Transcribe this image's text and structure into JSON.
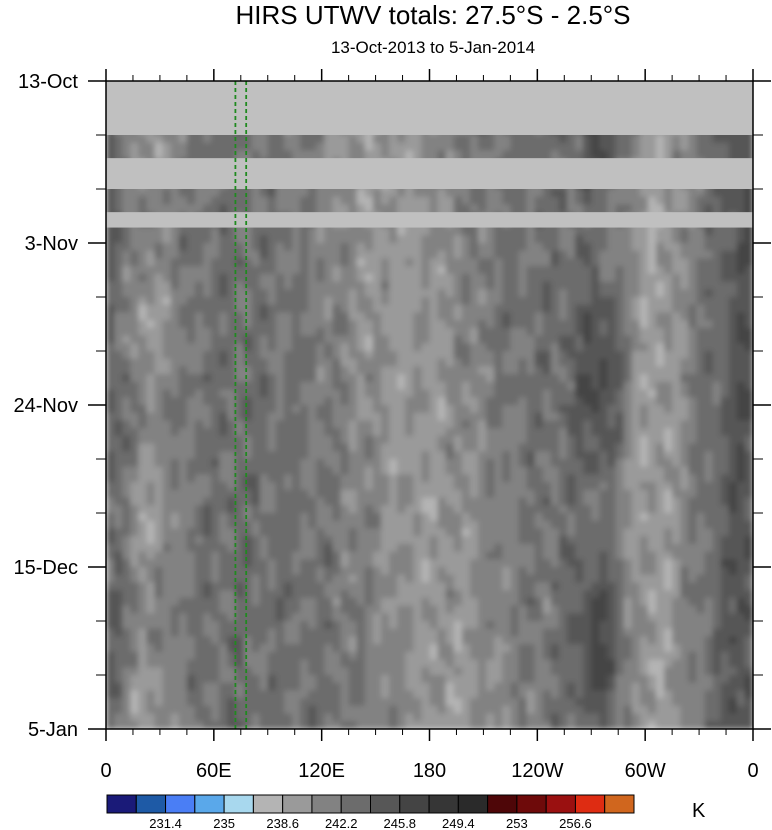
{
  "chart_data": {
    "type": "heatmap",
    "title": "HIRS UTWV totals: 27.5°S - 2.5°S",
    "subtitle": "13-Oct-2013 to 5-Jan-2014",
    "xlabel": "",
    "ylabel": "",
    "units": "K",
    "x_axis": {
      "range_deg_east": [
        0,
        360
      ],
      "tick_values_deg_east": [
        0,
        60,
        120,
        180,
        240,
        300,
        360
      ],
      "tick_labels": [
        "0",
        "60E",
        "120E",
        "180",
        "120W",
        "60W",
        "0"
      ]
    },
    "y_axis": {
      "range": [
        "2013-10-13",
        "2014-01-05"
      ],
      "direction": "time increases downward",
      "tick_dates": [
        "2013-10-13",
        "2013-11-03",
        "2013-11-24",
        "2013-12-15",
        "2014-01-05"
      ],
      "tick_labels": [
        "13-Oct",
        "3-Nov",
        "24-Nov",
        "15-Dec",
        "5-Jan"
      ]
    },
    "colorbar": {
      "levels": [
        231.4,
        235,
        238.6,
        242.2,
        245.8,
        249.4,
        253,
        256.6
      ],
      "colors": [
        "#1a1a78",
        "#1e5aa6",
        "#4a7ef5",
        "#5aa8ea",
        "#a8d8ee",
        "#b4b4b4",
        "#9a9a9a",
        "#828282",
        "#6c6c6c",
        "#575757",
        "#444444",
        "#363636",
        "#2a2a2a",
        "#4e0608",
        "#6e0a0a",
        "#9a1010",
        "#de2c12",
        "#d0661e"
      ],
      "orientation": "horizontal"
    },
    "missing_data_color": "#c0c0c0",
    "missing_data_bands": [
      {
        "from": "2013-10-13",
        "to": "2013-10-20"
      },
      {
        "from": "2013-10-23",
        "to": "2013-10-27"
      },
      {
        "from": "2013-10-30",
        "to": "2013-11-01"
      }
    ],
    "reference_lines": {
      "style": "dashed",
      "color": "#1f8a1f",
      "longitudes_deg_east": [
        72,
        78
      ]
    }
  }
}
